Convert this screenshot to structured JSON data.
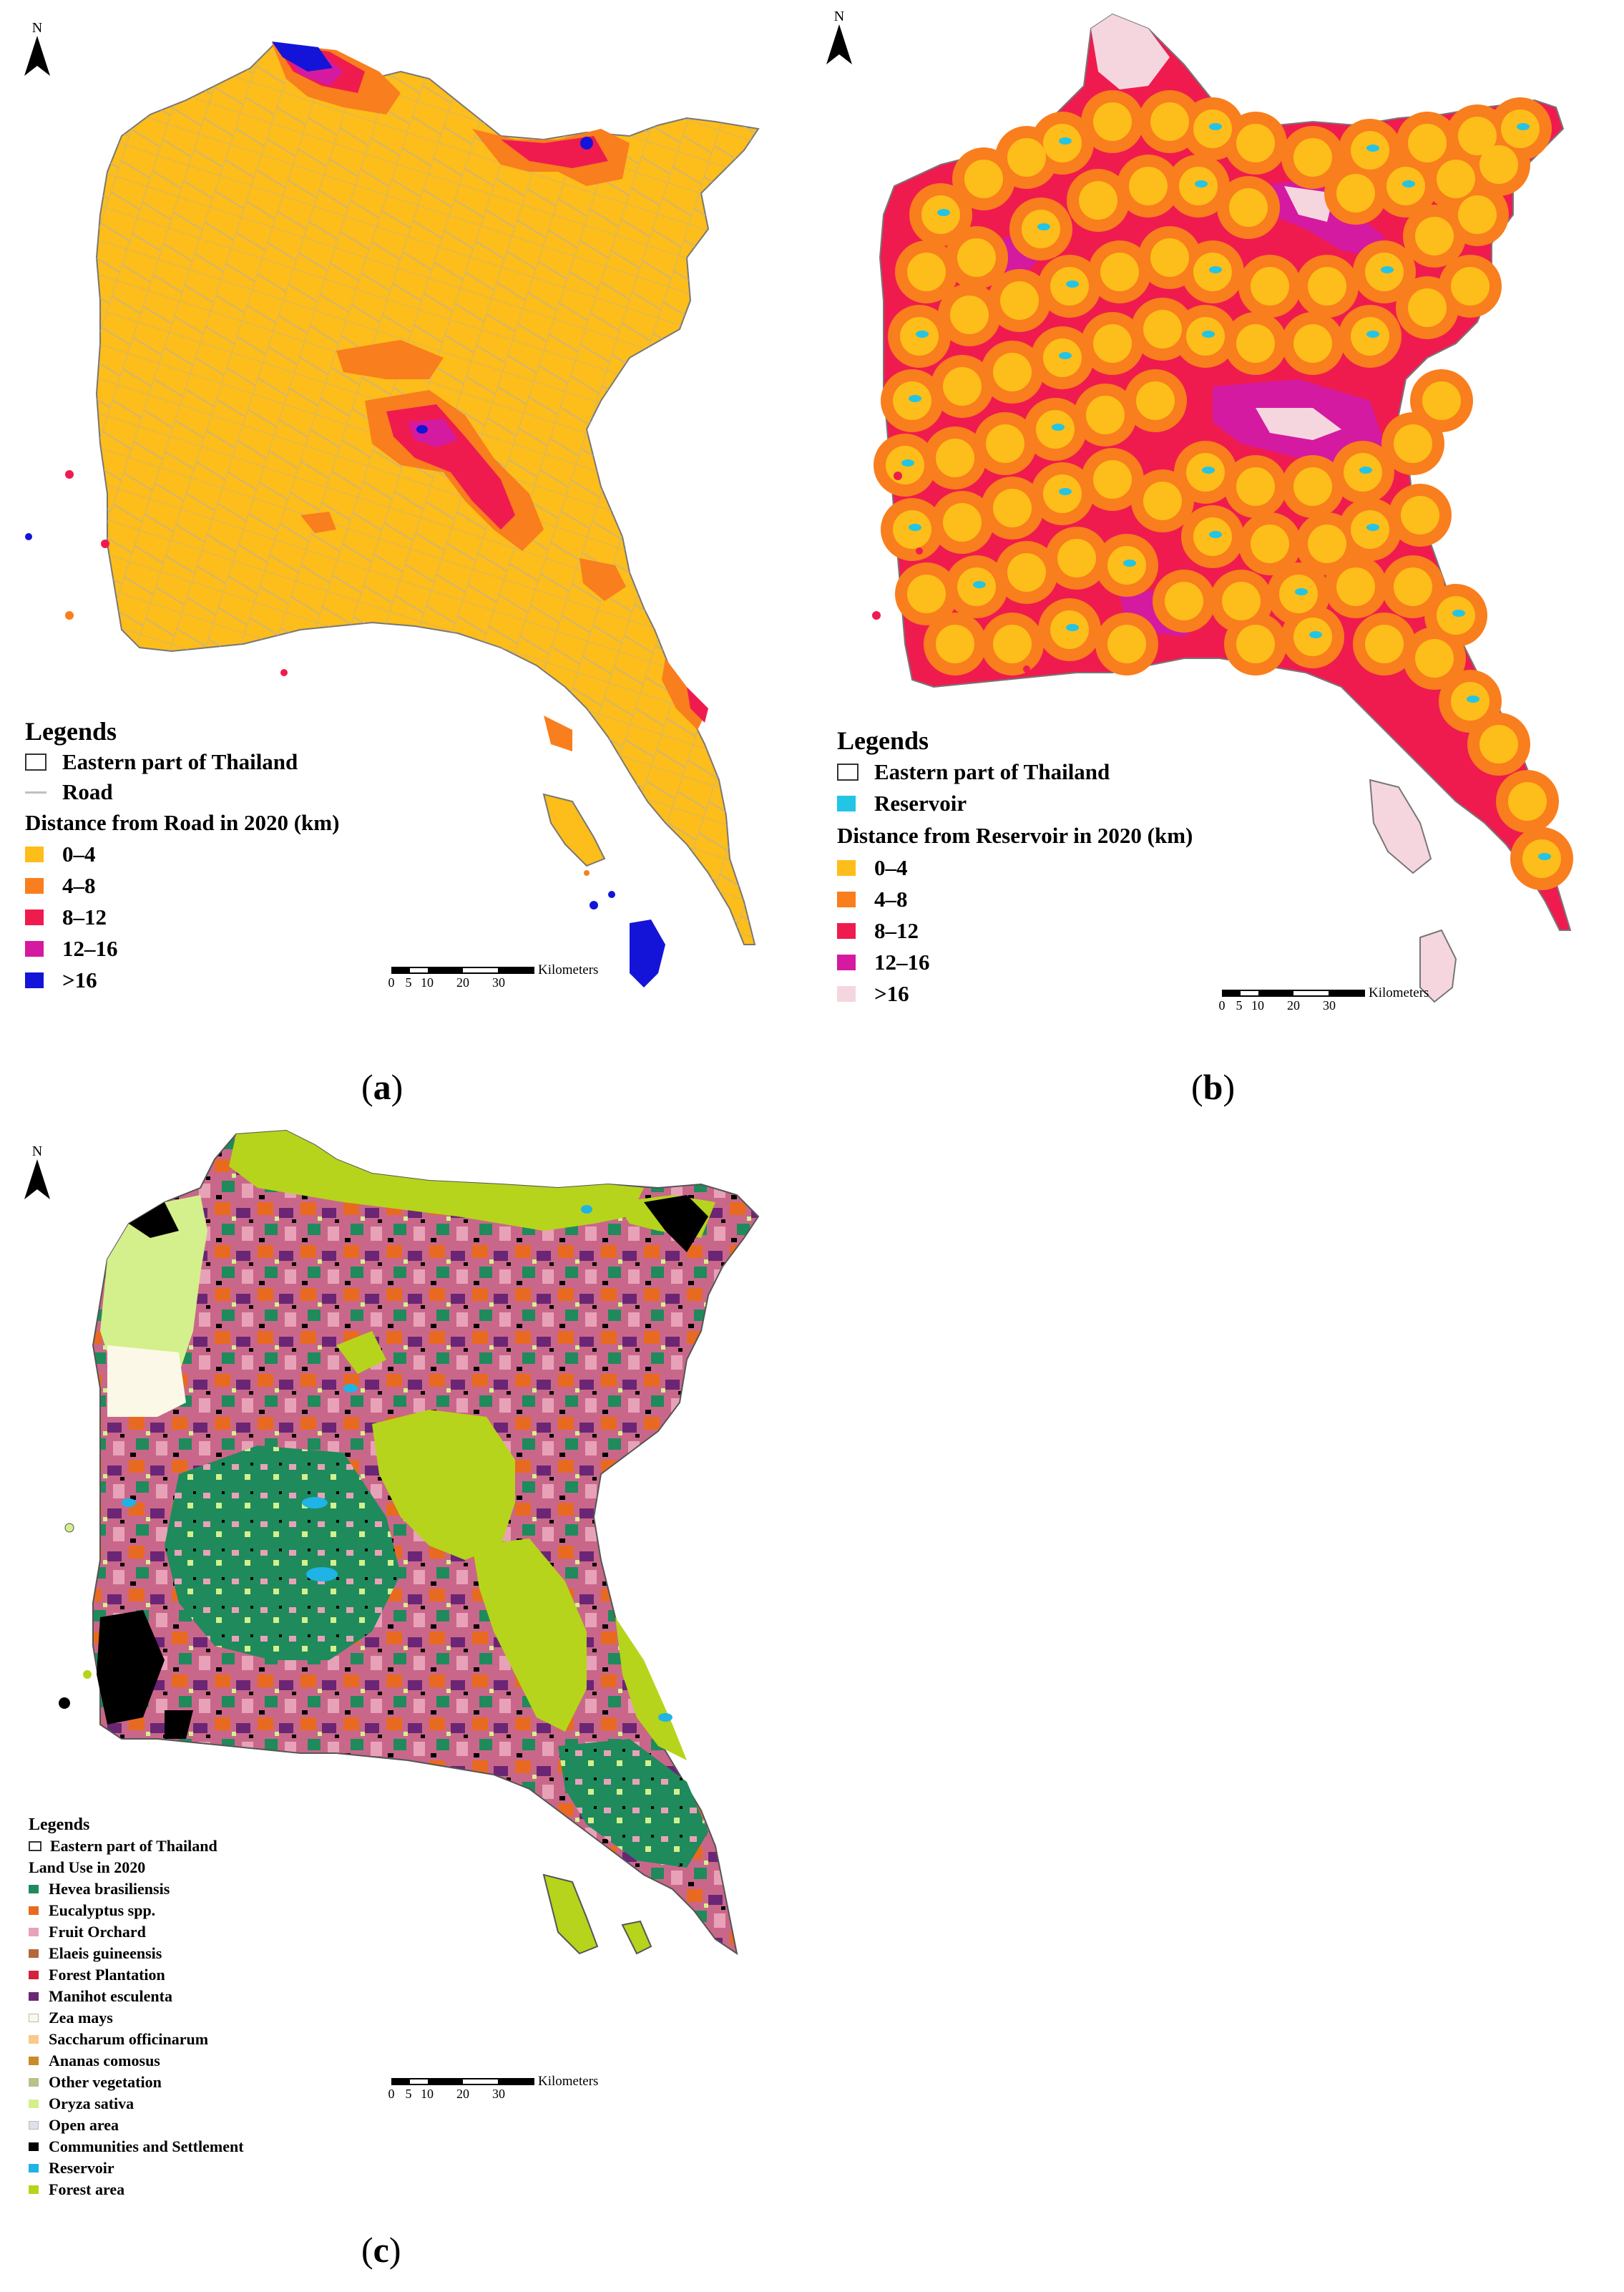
{
  "north_label": "N",
  "scale": {
    "ticks": [
      "0",
      "5",
      "10",
      "20",
      "30"
    ],
    "unit": "Kilometers"
  },
  "panels": [
    {
      "caption_open": "(",
      "caption_letter": "a",
      "caption_close": ")",
      "legend_title": "Legends",
      "boundary_label": "Eastern part of Thailand",
      "feature_label": "Road",
      "feature_color": "#bfbfbf",
      "class_title": "Distance from Road in 2020 (km)",
      "classes": [
        {
          "label": "0–4",
          "color": "#fdbd1a"
        },
        {
          "label": "4–8",
          "color": "#f97e1d"
        },
        {
          "label": "8–12",
          "color": "#ef1b4f"
        },
        {
          "label": "12–16",
          "color": "#d41aa0"
        },
        {
          "label": ">16",
          "color": "#1414d8"
        }
      ]
    },
    {
      "caption_open": "(",
      "caption_letter": "b",
      "caption_close": ")",
      "legend_title": "Legends",
      "boundary_label": "Eastern part of Thailand",
      "feature_label": "Reservoir",
      "feature_color": "#22c5e6",
      "class_title": "Distance from Reservoir in 2020 (km)",
      "classes": [
        {
          "label": "0–4",
          "color": "#fdbd1a"
        },
        {
          "label": "4–8",
          "color": "#f97e1d"
        },
        {
          "label": "8–12",
          "color": "#ef1b4f"
        },
        {
          "label": "12–16",
          "color": "#d41aa0"
        },
        {
          "label": ">16",
          "color": "#f6d6de"
        }
      ]
    },
    {
      "caption_open": "(",
      "caption_letter": "c",
      "caption_close": ")",
      "legend_title": "Legends",
      "boundary_label": "Eastern part of Thailand",
      "class_title": "Land Use in 2020",
      "classes": [
        {
          "label": "Hevea brasiliensis",
          "color": "#1f8a5c"
        },
        {
          "label": "Eucalyptus spp.",
          "color": "#e86a21"
        },
        {
          "label": "Fruit Orchard",
          "color": "#e8a2b8"
        },
        {
          "label": "Elaeis guineensis",
          "color": "#b5683c"
        },
        {
          "label": "Forest Plantation",
          "color": "#d4213d"
        },
        {
          "label": "Manihot esculenta",
          "color": "#6b2575"
        },
        {
          "label": "Zea mays",
          "color": "#fbf8e8"
        },
        {
          "label": "Saccharum officinarum",
          "color": "#f9c98c"
        },
        {
          "label": "Ananas comosus",
          "color": "#c98a2c"
        },
        {
          "label": "Other vegetation",
          "color": "#b7c28d"
        },
        {
          "label": "Oryza sativa",
          "color": "#d4f08c"
        },
        {
          "label": "Open area",
          "color": "#dde1ea"
        },
        {
          "label": "Communities and Settlement",
          "color": "#000000"
        },
        {
          "label": "Reservoir",
          "color": "#1fb3e6"
        },
        {
          "label": "Forest area",
          "color": "#b6d41c"
        }
      ]
    }
  ]
}
